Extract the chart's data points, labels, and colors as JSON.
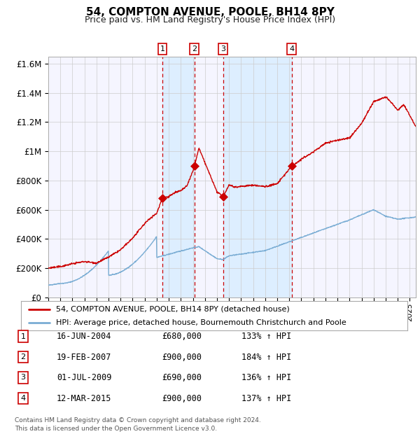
{
  "title": "54, COMPTON AVENUE, POOLE, BH14 8PY",
  "subtitle": "Price paid vs. HM Land Registry's House Price Index (HPI)",
  "legend_line1": "54, COMPTON AVENUE, POOLE, BH14 8PY (detached house)",
  "legend_line2": "HPI: Average price, detached house, Bournemouth Christchurch and Poole",
  "footer": "Contains HM Land Registry data © Crown copyright and database right 2024.\nThis data is licensed under the Open Government Licence v3.0.",
  "transactions": [
    {
      "num": 1,
      "date": "16-JUN-2004",
      "price": 680000,
      "hpi_pct": "133% ↑ HPI",
      "year": 2004.46
    },
    {
      "num": 2,
      "date": "19-FEB-2007",
      "price": 900000,
      "hpi_pct": "184% ↑ HPI",
      "year": 2007.13
    },
    {
      "num": 3,
      "date": "01-JUL-2009",
      "price": 690000,
      "hpi_pct": "136% ↑ HPI",
      "year": 2009.5
    },
    {
      "num": 4,
      "date": "12-MAR-2015",
      "price": 900000,
      "hpi_pct": "137% ↑ HPI",
      "year": 2015.19
    }
  ],
  "hpi_color": "#7aadd4",
  "price_color": "#cc0000",
  "bg_color": "#ffffff",
  "chart_bg": "#f5f5ff",
  "grid_color": "#cccccc",
  "shade_color": "#ddeeff",
  "dashed_color": "#cc0000",
  "ylim": [
    0,
    1650000
  ],
  "xlim_start": 1995,
  "xlim_end": 2025.5,
  "yticks": [
    0,
    200000,
    400000,
    600000,
    800000,
    1000000,
    1200000,
    1400000,
    1600000
  ],
  "ytick_labels": [
    "£0",
    "£200K",
    "£400K",
    "£600K",
    "£800K",
    "£1M",
    "£1.2M",
    "£1.4M",
    "£1.6M"
  ]
}
